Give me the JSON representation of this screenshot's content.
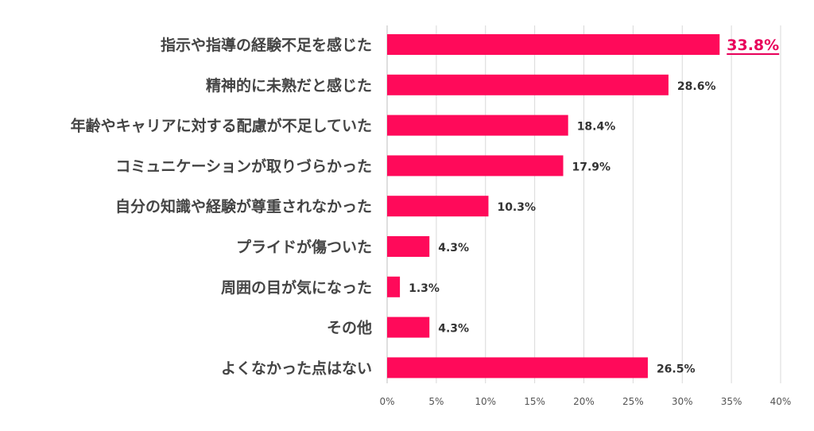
{
  "chart_data": {
    "type": "bar",
    "orientation": "horizontal",
    "categories": [
      "指示や指導の経験不足を感じた",
      "精神的に未熟だと感じた",
      "年齢やキャリアに対する配慮が不足していた",
      "コミュニケーションが取りづらかった",
      "自分の知識や経験が尊重されなかった",
      "プライドが傷ついた",
      "周囲の目が気になった",
      "その他",
      "よくなかった点はない"
    ],
    "values": [
      33.8,
      28.6,
      18.4,
      17.9,
      10.3,
      4.3,
      1.3,
      4.3,
      26.5
    ],
    "value_labels": [
      "33.8%",
      "28.6%",
      "18.4%",
      "17.9%",
      "10.3%",
      "4.3%",
      "1.3%",
      "4.3%",
      "26.5%"
    ],
    "highlight_index": 0,
    "title": "",
    "xlabel": "",
    "ylabel": "",
    "xlim": [
      0,
      40
    ],
    "ticks": [
      0,
      5,
      10,
      15,
      20,
      25,
      30,
      35,
      40
    ],
    "tick_labels": [
      "0%",
      "5%",
      "10%",
      "15%",
      "20%",
      "25%",
      "30%",
      "35%",
      "40%"
    ],
    "grid": true,
    "legend": "none",
    "bar_color": "#ff0a5a",
    "highlight_color": "#e8005a"
  }
}
